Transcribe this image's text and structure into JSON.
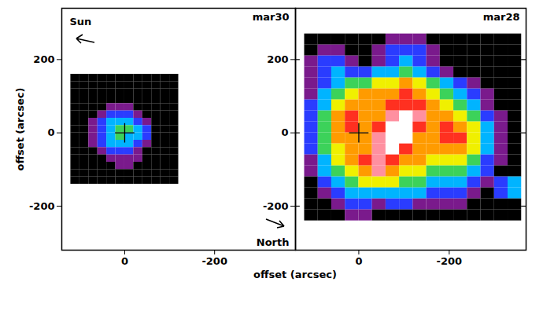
{
  "chart_data": [
    {
      "type": "heatmap",
      "title": "mar30",
      "xlabel": "offset (arcsec)",
      "ylabel": "offset (arcsec)",
      "xlim": [
        140,
        -380
      ],
      "ylim": [
        -320,
        340
      ],
      "xticks": [
        0,
        -200
      ],
      "yticks": [
        200,
        0,
        -200
      ],
      "annotations": [
        {
          "text": "Sun"
        },
        {
          "text": "North"
        }
      ],
      "cross": {
        "x": 0,
        "y": 0
      },
      "zlim": [
        0,
        9
      ],
      "x": [
        110,
        90,
        70,
        50,
        30,
        10,
        -10,
        -30,
        -50,
        -70,
        -90,
        -110
      ],
      "y": [
        150,
        130,
        110,
        90,
        70,
        50,
        30,
        10,
        -10,
        -30,
        -50,
        -70,
        -90,
        -110,
        -130
      ],
      "z": [
        [
          0,
          0,
          0,
          0,
          0,
          0,
          0,
          0,
          0,
          0,
          0,
          0
        ],
        [
          0,
          0,
          0,
          0,
          0,
          0,
          0,
          0,
          0,
          0,
          0,
          0
        ],
        [
          0,
          0,
          0,
          0,
          0,
          0,
          0,
          0,
          0,
          0,
          0,
          0
        ],
        [
          0,
          0,
          0,
          0,
          0,
          0,
          0,
          0,
          0,
          0,
          0,
          0
        ],
        [
          0,
          0,
          0,
          0,
          1,
          1,
          1,
          0,
          0,
          0,
          0,
          0
        ],
        [
          0,
          0,
          0,
          1,
          2,
          2,
          2,
          1,
          0,
          0,
          0,
          0
        ],
        [
          0,
          0,
          1,
          2,
          3,
          3,
          3,
          2,
          1,
          0,
          0,
          0
        ],
        [
          0,
          0,
          1,
          2,
          3,
          4,
          4,
          3,
          2,
          0,
          0,
          0
        ],
        [
          0,
          0,
          1,
          2,
          3,
          4,
          3,
          3,
          2,
          0,
          0,
          0
        ],
        [
          0,
          0,
          1,
          2,
          3,
          3,
          3,
          2,
          1,
          0,
          0,
          0
        ],
        [
          0,
          0,
          0,
          1,
          2,
          2,
          2,
          1,
          0,
          0,
          0,
          0
        ],
        [
          0,
          0,
          0,
          0,
          1,
          1,
          1,
          1,
          0,
          0,
          0,
          0
        ],
        [
          0,
          0,
          0,
          0,
          0,
          1,
          1,
          0,
          0,
          0,
          0,
          0
        ],
        [
          0,
          0,
          0,
          0,
          0,
          0,
          0,
          0,
          0,
          0,
          0,
          0
        ],
        [
          0,
          0,
          0,
          0,
          0,
          0,
          0,
          0,
          0,
          0,
          0,
          0
        ]
      ]
    },
    {
      "type": "heatmap",
      "title": "mar28",
      "xlim": [
        140,
        -370
      ],
      "ylim": [
        -320,
        340
      ],
      "xticks": [
        0,
        -200
      ],
      "yticks": [
        200,
        0,
        -200
      ],
      "tick_labels": "x",
      "cross": {
        "x": 0,
        "y": 0
      },
      "zlim": [
        0,
        9
      ],
      "x": [
        105,
        75,
        45,
        15,
        -15,
        -45,
        -75,
        -105,
        -135,
        -165,
        -195,
        -225,
        -255,
        -285,
        -315,
        -345
      ],
      "y": [
        255,
        225,
        195,
        165,
        135,
        105,
        75,
        45,
        15,
        -15,
        -45,
        -75,
        -105,
        -135,
        -165,
        -195,
        -225
      ],
      "z": [
        [
          0,
          0,
          0,
          0,
          0,
          0,
          1,
          1,
          1,
          0,
          0,
          0,
          0,
          0,
          0,
          0
        ],
        [
          0,
          1,
          1,
          0,
          0,
          1,
          2,
          2,
          2,
          1,
          0,
          0,
          0,
          0,
          0,
          0
        ],
        [
          1,
          2,
          2,
          1,
          0,
          1,
          2,
          3,
          2,
          1,
          0,
          0,
          0,
          0,
          0,
          0
        ],
        [
          1,
          2,
          3,
          2,
          2,
          3,
          3,
          4,
          3,
          2,
          1,
          0,
          0,
          0,
          0,
          0
        ],
        [
          1,
          2,
          3,
          4,
          4,
          5,
          5,
          6,
          5,
          4,
          3,
          2,
          1,
          0,
          0,
          0
        ],
        [
          1,
          3,
          4,
          5,
          6,
          6,
          6,
          7,
          6,
          5,
          4,
          3,
          2,
          1,
          0,
          0
        ],
        [
          2,
          3,
          5,
          6,
          6,
          6,
          7,
          7,
          7,
          6,
          5,
          4,
          3,
          1,
          0,
          0
        ],
        [
          2,
          4,
          6,
          7,
          6,
          6,
          8,
          9,
          8,
          6,
          6,
          5,
          4,
          2,
          1,
          0
        ],
        [
          2,
          4,
          6,
          7,
          6,
          7,
          9,
          9,
          7,
          6,
          7,
          6,
          5,
          3,
          1,
          0
        ],
        [
          2,
          4,
          6,
          6,
          6,
          8,
          9,
          9,
          6,
          6,
          7,
          7,
          5,
          3,
          1,
          0
        ],
        [
          2,
          4,
          5,
          6,
          6,
          8,
          9,
          7,
          6,
          6,
          6,
          6,
          5,
          3,
          1,
          0
        ],
        [
          1,
          3,
          5,
          6,
          7,
          8,
          7,
          6,
          6,
          5,
          5,
          5,
          4,
          2,
          1,
          0
        ],
        [
          1,
          3,
          4,
          5,
          6,
          8,
          6,
          5,
          5,
          4,
          4,
          4,
          3,
          2,
          0,
          0
        ],
        [
          0,
          2,
          3,
          4,
          5,
          5,
          5,
          4,
          4,
          3,
          3,
          3,
          2,
          1,
          2,
          3
        ],
        [
          0,
          1,
          2,
          3,
          3,
          3,
          3,
          3,
          3,
          2,
          2,
          2,
          1,
          0,
          2,
          3
        ],
        [
          0,
          0,
          1,
          2,
          2,
          1,
          2,
          2,
          1,
          1,
          1,
          1,
          0,
          0,
          0,
          0
        ],
        [
          0,
          0,
          0,
          1,
          1,
          0,
          0,
          0,
          0,
          0,
          0,
          0,
          0,
          0,
          0,
          0
        ]
      ]
    }
  ]
}
